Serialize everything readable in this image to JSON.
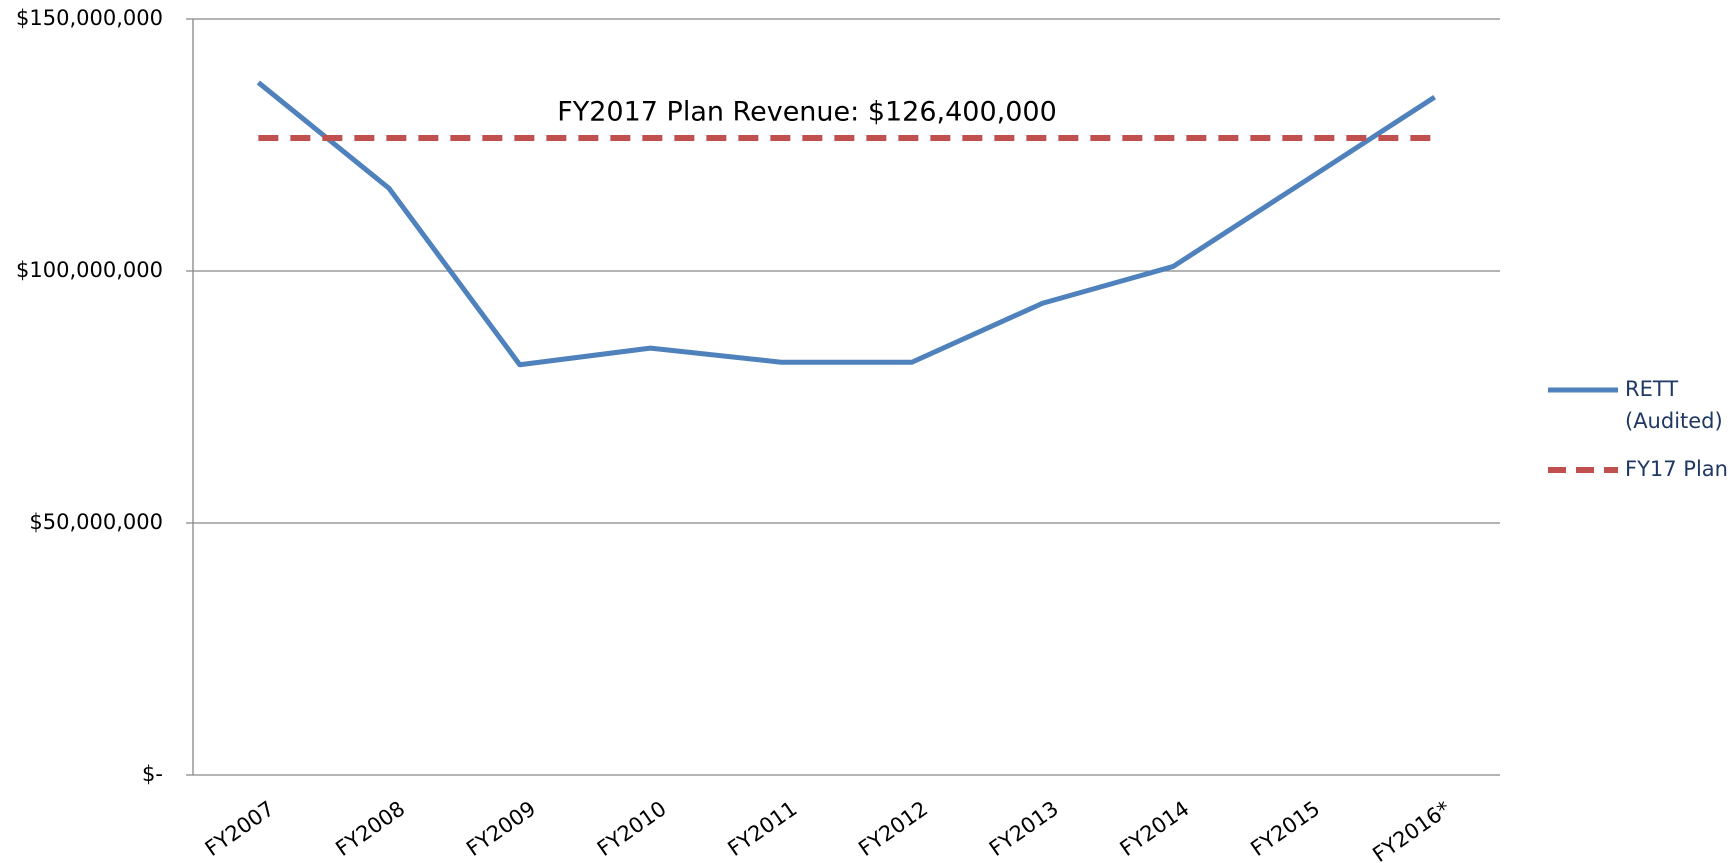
{
  "chart_data": {
    "type": "line",
    "annotation": "FY2017 Plan Revenue: $126,400,000",
    "categories": [
      "FY2007",
      "FY2008",
      "FY2009",
      "FY2010",
      "FY2011",
      "FY2012",
      "FY2013",
      "FY2014",
      "FY2015",
      "FY2016*"
    ],
    "series": [
      {
        "name": "RETT (Audited)",
        "color": "#4f81bd",
        "dashed": false,
        "values": [
          137400000,
          116400000,
          81400000,
          84700000,
          81900000,
          81900000,
          93600000,
          100900000,
          117700000,
          134500000
        ]
      },
      {
        "name": "FY17 Plan",
        "color": "#c0504d",
        "dashed": true,
        "values": [
          126400000,
          126400000,
          126400000,
          126400000,
          126400000,
          126400000,
          126400000,
          126400000,
          126400000,
          126400000
        ]
      }
    ],
    "ylim": [
      0,
      150000000
    ],
    "yticks": [
      {
        "value": 0,
        "label": "$-"
      },
      {
        "value": 50000000,
        "label": "$50,000,000"
      },
      {
        "value": 100000000,
        "label": "$100,000,000"
      },
      {
        "value": 150000000,
        "label": "$150,000,000"
      }
    ],
    "grid": true
  }
}
